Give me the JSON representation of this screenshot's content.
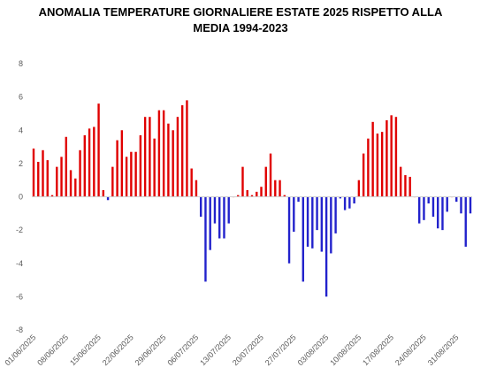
{
  "chart_data": {
    "type": "bar",
    "title_lines": [
      "ANOMALIA TEMPERATURE  GIORNALIERE ESTATE 2025  RISPETTO ALLA",
      "MEDIA 1994-2023"
    ],
    "xlabel": "",
    "ylabel": "",
    "ylim": [
      -8,
      8
    ],
    "y_ticks": [
      -8,
      -6,
      -4,
      -2,
      0,
      2,
      4,
      6,
      8
    ],
    "grid": false,
    "legend": "none",
    "positive_color": "#e00000",
    "negative_color": "#2222cc",
    "x_tick_labels": [
      "01/06/2025",
      "08/06/2025",
      "15/06/2025",
      "22/06/2025",
      "29/06/2025",
      "06/07/2025",
      "13/07/2025",
      "20/07/2025",
      "27/07/2025",
      "03/08/2025",
      "10/08/2025",
      "17/08/2025",
      "24/08/2025",
      "31/08/2025"
    ],
    "start_date": "2025-06-01",
    "values": [
      2.9,
      2.1,
      2.8,
      2.2,
      0.1,
      1.8,
      2.4,
      3.6,
      1.6,
      1.1,
      2.8,
      3.7,
      4.1,
      4.2,
      5.6,
      0.4,
      -0.2,
      1.8,
      3.4,
      4.0,
      2.4,
      2.7,
      2.7,
      3.7,
      4.8,
      4.8,
      3.5,
      5.2,
      5.2,
      4.4,
      4.0,
      4.8,
      5.5,
      5.8,
      1.7,
      1.0,
      -1.2,
      -5.1,
      -3.2,
      -1.6,
      -2.5,
      -2.5,
      -1.6,
      0.0,
      0.1,
      1.8,
      0.4,
      0.1,
      0.3,
      0.6,
      1.8,
      2.6,
      1.0,
      1.0,
      0.1,
      -4.0,
      -2.1,
      -0.3,
      -5.1,
      -3.0,
      -3.1,
      -2.0,
      -3.3,
      -6.0,
      -3.4,
      -2.2,
      -0.1,
      -0.8,
      -0.7,
      -0.4,
      1.0,
      2.6,
      3.5,
      4.5,
      3.8,
      3.9,
      4.6,
      4.9,
      4.8,
      1.8,
      1.3,
      1.2,
      0.0,
      -1.6,
      -1.4,
      -0.4,
      -1.2,
      -1.9,
      -2.0,
      -0.9,
      0.0,
      -0.3,
      -1.0,
      -3.0,
      -1.0
    ]
  }
}
